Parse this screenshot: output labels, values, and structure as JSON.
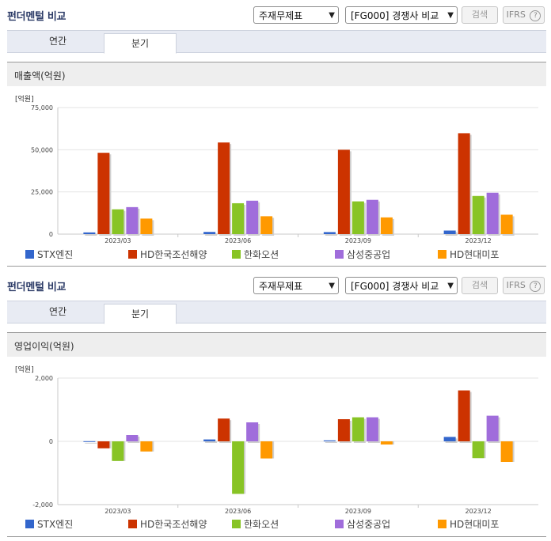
{
  "panels": [
    {
      "title": "펀더멘털 비교",
      "select1": "주재무제표",
      "select2": "[FG000] 경쟁사 비교",
      "search_label": "검색",
      "ifrs_label": "IFRS",
      "tabs": [
        "연간",
        "분기"
      ],
      "active_tab": "분기",
      "metric": "매출액(억원)",
      "unit": "[억원]"
    },
    {
      "title": "펀더멘털 비교",
      "select1": "주재무제표",
      "select2": "[FG000] 경쟁사 비교",
      "search_label": "검색",
      "ifrs_label": "IFRS",
      "tabs": [
        "연간",
        "분기"
      ],
      "active_tab": "분기",
      "metric": "영업이익(억원)",
      "unit": "[억원]"
    }
  ],
  "legend": [
    "STX엔진",
    "HD한국조선해양",
    "한화오션",
    "삼성중공업",
    "HD현대미포"
  ],
  "chart_data": [
    {
      "type": "bar",
      "title": "매출액(억원)",
      "ylabel": "[억원]",
      "categories": [
        "2023/03",
        "2023/06",
        "2023/09",
        "2023/12"
      ],
      "ylim": [
        0,
        75000
      ],
      "yticks": [
        "0",
        "25,000",
        "50,000",
        "75,000"
      ],
      "series": [
        {
          "name": "STX엔진",
          "color": "#3366cc",
          "values": [
            1000,
            1300,
            1200,
            2100
          ]
        },
        {
          "name": "HD한국조선해양",
          "color": "#cc3300",
          "values": [
            48200,
            54300,
            50000,
            59800
          ]
        },
        {
          "name": "한화오션",
          "color": "#88c425",
          "values": [
            14700,
            18300,
            19400,
            22600
          ]
        },
        {
          "name": "삼성중공업",
          "color": "#a06ddb",
          "values": [
            16000,
            19800,
            20300,
            24500
          ]
        },
        {
          "name": "HD현대미포",
          "color": "#ff9900",
          "values": [
            9200,
            10600,
            9900,
            11500
          ]
        }
      ]
    },
    {
      "type": "bar",
      "title": "영업이익(억원)",
      "ylabel": "[억원]",
      "categories": [
        "2023/03",
        "2023/06",
        "2023/09",
        "2023/12"
      ],
      "ylim": [
        -2000,
        2000
      ],
      "yticks": [
        "-2,000",
        "0",
        "2,000"
      ],
      "series": [
        {
          "name": "STX엔진",
          "color": "#3366cc",
          "values": [
            5,
            60,
            30,
            140
          ]
        },
        {
          "name": "HD한국조선해양",
          "color": "#cc3300",
          "values": [
            -220,
            720,
            700,
            1610
          ]
        },
        {
          "name": "한화오션",
          "color": "#88c425",
          "values": [
            -620,
            -1660,
            760,
            -530
          ]
        },
        {
          "name": "삼성중공업",
          "color": "#a06ddb",
          "values": [
            200,
            600,
            760,
            810
          ]
        },
        {
          "name": "HD현대미포",
          "color": "#ff9900",
          "values": [
            -320,
            -540,
            -100,
            -650
          ]
        }
      ]
    }
  ]
}
